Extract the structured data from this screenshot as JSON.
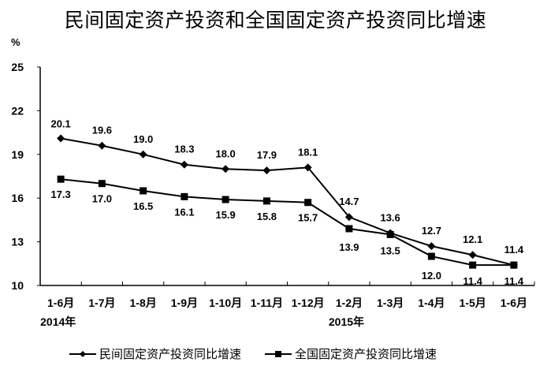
{
  "chart_data": {
    "type": "line",
    "title": "民间固定资产投资和全国固定资产投资同比增速",
    "ylabel": "%",
    "xlabel": "",
    "ylim": [
      10,
      25
    ],
    "yticks": [
      10,
      13,
      16,
      19,
      22,
      25
    ],
    "categories": [
      "1-6月",
      "1-7月",
      "1-8月",
      "1-9月",
      "1-10月",
      "1-11月",
      "1-12月",
      "1-2月",
      "1-3月",
      "1-4月",
      "1-5月",
      "1-6月"
    ],
    "year_labels": [
      {
        "label": "2014年",
        "at_index": 0
      },
      {
        "label": "2015年",
        "at_index": 7
      }
    ],
    "grid": false,
    "legend_position": "bottom",
    "series": [
      {
        "name": "民间固定资产投资同比增速",
        "marker": "diamond",
        "values": [
          20.1,
          19.6,
          19.0,
          18.3,
          18.0,
          17.9,
          18.1,
          14.7,
          13.6,
          12.7,
          12.1,
          11.4
        ]
      },
      {
        "name": "全国固定资产投资同比增速",
        "marker": "square",
        "values": [
          17.3,
          17.0,
          16.5,
          16.1,
          15.9,
          15.8,
          15.7,
          13.9,
          13.5,
          12.0,
          11.4,
          11.4
        ]
      }
    ]
  },
  "colors": {
    "line": "#000000",
    "background": "#ffffff"
  }
}
